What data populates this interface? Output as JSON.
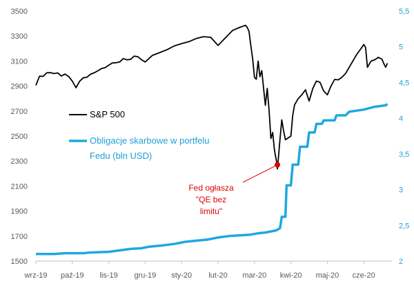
{
  "chart_data": {
    "type": "line",
    "x_tick_labels": [
      "wrz-19",
      "paź-19",
      "lis-19",
      "gru-19",
      "sty-20",
      "lut-20",
      "mar-20",
      "kwi-20",
      "maj-20",
      "cze-20"
    ],
    "y_left": {
      "min": 1500,
      "max": 3500,
      "ticks": [
        1500,
        1700,
        1900,
        2100,
        2300,
        2500,
        2700,
        2900,
        3100,
        3300,
        3500
      ]
    },
    "y_right": {
      "min": 2,
      "max": 5.5,
      "ticks": [
        "2",
        "2,5",
        "3",
        "3,5",
        "4",
        "4,5",
        "5",
        "5,5"
      ]
    },
    "grid": false,
    "series": [
      {
        "name": "S&P 500",
        "axis": "left",
        "color": "#000000",
        "points": [
          [
            0.0,
            2906
          ],
          [
            0.1,
            2979
          ],
          [
            0.2,
            2978
          ],
          [
            0.3,
            3006
          ],
          [
            0.4,
            3007
          ],
          [
            0.5,
            3000
          ],
          [
            0.6,
            3005
          ],
          [
            0.7,
            2980
          ],
          [
            0.8,
            2996
          ],
          [
            0.9,
            2977
          ],
          [
            1.0,
            2940
          ],
          [
            1.1,
            2887
          ],
          [
            1.2,
            2938
          ],
          [
            1.3,
            2966
          ],
          [
            1.4,
            2970
          ],
          [
            1.5,
            2995
          ],
          [
            1.6,
            3006
          ],
          [
            1.7,
            3022
          ],
          [
            1.8,
            3040
          ],
          [
            1.9,
            3047
          ],
          [
            2.0,
            3067
          ],
          [
            2.1,
            3085
          ],
          [
            2.2,
            3087
          ],
          [
            2.3,
            3092
          ],
          [
            2.4,
            3120
          ],
          [
            2.5,
            3110
          ],
          [
            2.6,
            3114
          ],
          [
            2.7,
            3140
          ],
          [
            2.8,
            3135
          ],
          [
            2.9,
            3110
          ],
          [
            3.0,
            3093
          ],
          [
            3.2,
            3146
          ],
          [
            3.4,
            3168
          ],
          [
            3.6,
            3191
          ],
          [
            3.8,
            3221
          ],
          [
            4.0,
            3240
          ],
          [
            4.2,
            3255
          ],
          [
            4.4,
            3280
          ],
          [
            4.6,
            3295
          ],
          [
            4.8,
            3290
          ],
          [
            5.0,
            3225
          ],
          [
            5.2,
            3285
          ],
          [
            5.4,
            3345
          ],
          [
            5.6,
            3370
          ],
          [
            5.7,
            3380
          ],
          [
            5.75,
            3386
          ],
          [
            5.8,
            3370
          ],
          [
            5.85,
            3337
          ],
          [
            5.9,
            3225
          ],
          [
            5.95,
            3116
          ],
          [
            6.0,
            2970
          ],
          [
            6.05,
            2954
          ],
          [
            6.1,
            3100
          ],
          [
            6.15,
            2975
          ],
          [
            6.2,
            3023
          ],
          [
            6.25,
            2882
          ],
          [
            6.3,
            2746
          ],
          [
            6.35,
            2882
          ],
          [
            6.4,
            2711
          ],
          [
            6.45,
            2480
          ],
          [
            6.5,
            2529
          ],
          [
            6.55,
            2386
          ],
          [
            6.6,
            2305
          ],
          [
            6.63,
            2237
          ],
          [
            6.7,
            2475
          ],
          [
            6.75,
            2630
          ],
          [
            6.8,
            2541
          ],
          [
            6.85,
            2470
          ],
          [
            7.0,
            2500
          ],
          [
            7.05,
            2663
          ],
          [
            7.1,
            2750
          ],
          [
            7.2,
            2800
          ],
          [
            7.3,
            2830
          ],
          [
            7.4,
            2870
          ],
          [
            7.5,
            2780
          ],
          [
            7.6,
            2880
          ],
          [
            7.7,
            2940
          ],
          [
            7.8,
            2930
          ],
          [
            7.9,
            2860
          ],
          [
            8.0,
            2830
          ],
          [
            8.1,
            2900
          ],
          [
            8.2,
            2953
          ],
          [
            8.3,
            2950
          ],
          [
            8.4,
            2970
          ],
          [
            8.5,
            3000
          ],
          [
            8.6,
            3050
          ],
          [
            8.7,
            3100
          ],
          [
            8.8,
            3150
          ],
          [
            8.9,
            3190
          ],
          [
            9.0,
            3232
          ],
          [
            9.05,
            3210
          ],
          [
            9.1,
            3050
          ],
          [
            9.2,
            3100
          ],
          [
            9.3,
            3110
          ],
          [
            9.4,
            3130
          ],
          [
            9.5,
            3115
          ],
          [
            9.55,
            3080
          ],
          [
            9.6,
            3050
          ],
          [
            9.65,
            3083
          ]
        ]
      },
      {
        "name": "Obligacje skarbowe w portfelu Fedu (bln USD)",
        "axis": "right",
        "color": "#1ea8e0",
        "points": [
          [
            0.0,
            2.1
          ],
          [
            0.5,
            2.1
          ],
          [
            0.8,
            2.11
          ],
          [
            1.3,
            2.11
          ],
          [
            1.5,
            2.12
          ],
          [
            2.0,
            2.13
          ],
          [
            2.3,
            2.15
          ],
          [
            2.6,
            2.17
          ],
          [
            2.9,
            2.18
          ],
          [
            3.1,
            2.2
          ],
          [
            3.5,
            2.22
          ],
          [
            3.8,
            2.24
          ],
          [
            4.1,
            2.27
          ],
          [
            4.3,
            2.28
          ],
          [
            4.7,
            2.3
          ],
          [
            5.0,
            2.33
          ],
          [
            5.3,
            2.35
          ],
          [
            5.6,
            2.36
          ],
          [
            5.9,
            2.37
          ],
          [
            6.1,
            2.39
          ],
          [
            6.3,
            2.4
          ],
          [
            6.5,
            2.42
          ],
          [
            6.6,
            2.43
          ],
          [
            6.7,
            2.46
          ],
          [
            6.75,
            2.62
          ],
          [
            6.85,
            2.62
          ],
          [
            6.88,
            3.06
          ],
          [
            7.0,
            3.06
          ],
          [
            7.05,
            3.35
          ],
          [
            7.2,
            3.35
          ],
          [
            7.25,
            3.6
          ],
          [
            7.45,
            3.6
          ],
          [
            7.5,
            3.8
          ],
          [
            7.65,
            3.8
          ],
          [
            7.7,
            3.92
          ],
          [
            7.85,
            3.92
          ],
          [
            7.9,
            3.97
          ],
          [
            8.2,
            3.97
          ],
          [
            8.25,
            4.04
          ],
          [
            8.5,
            4.04
          ],
          [
            8.6,
            4.09
          ],
          [
            9.0,
            4.12
          ],
          [
            9.3,
            4.16
          ],
          [
            9.6,
            4.18
          ],
          [
            9.65,
            4.2
          ]
        ]
      }
    ],
    "annotation": {
      "lines": [
        "Fed ogłasza",
        "\"QE bez",
        "limitu\""
      ],
      "color": "#e00000",
      "point": [
        6.63,
        2270
      ]
    }
  }
}
